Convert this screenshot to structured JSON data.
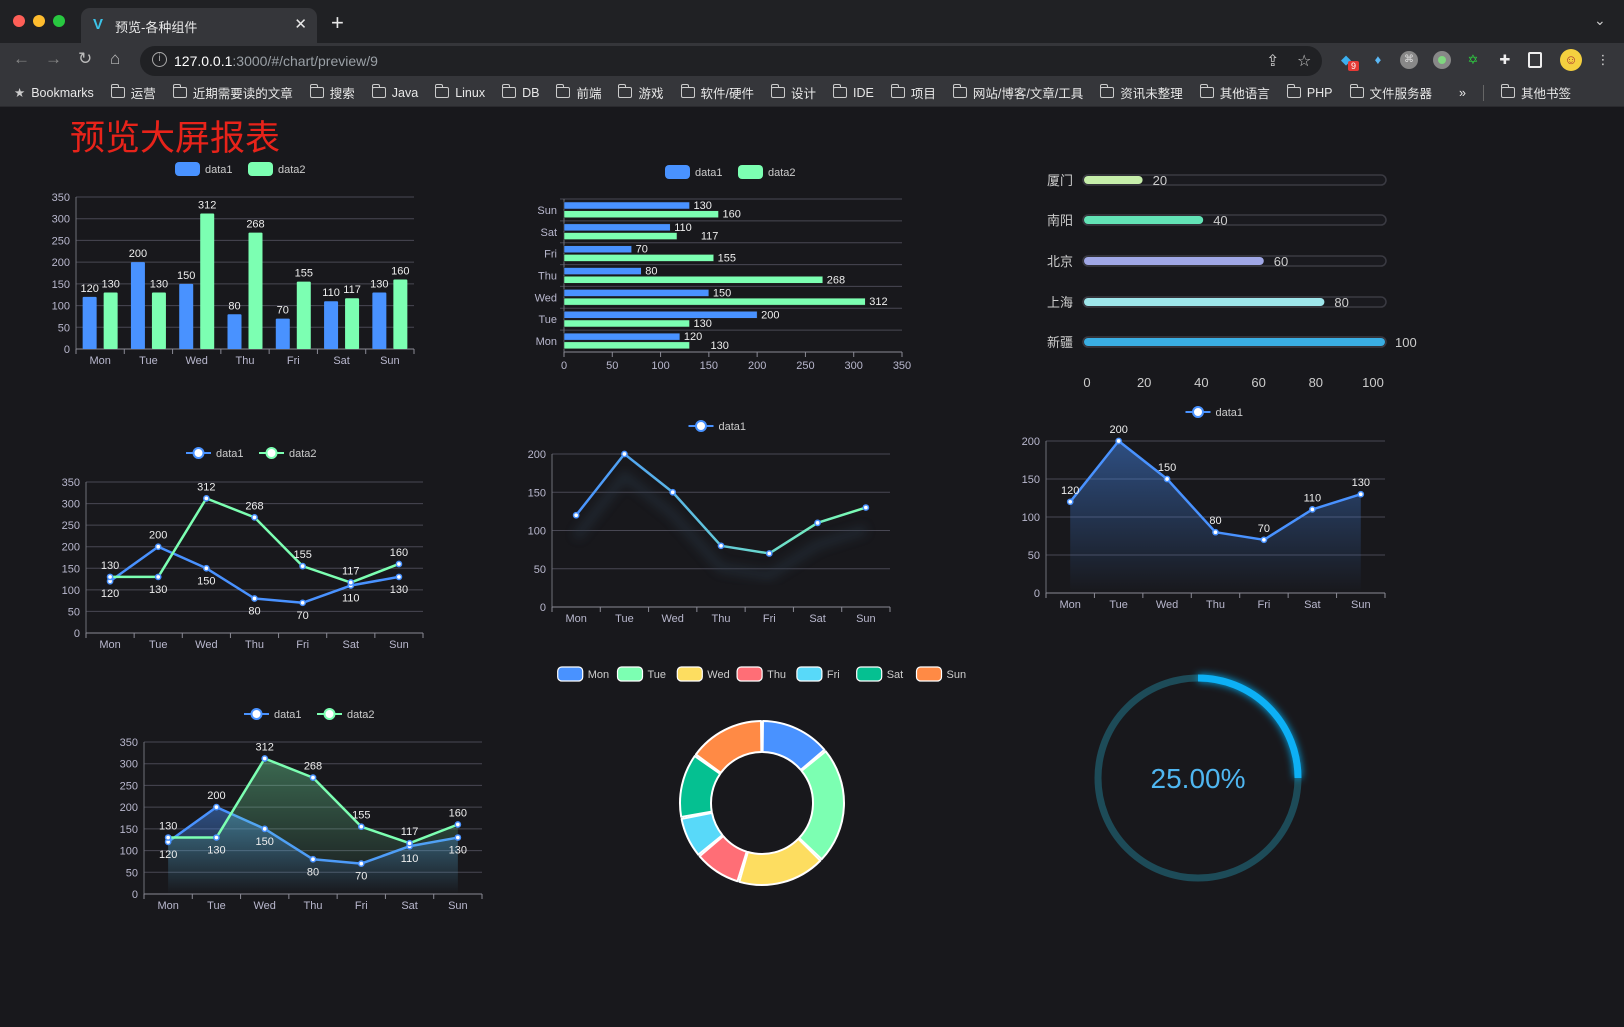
{
  "browser": {
    "tab_title": "预览-各种组件",
    "url_host": "127.0.0.1",
    "url_rest": ":3000/#/chart/preview/9",
    "bookmarks_label": "Bookmarks",
    "bookmarks": [
      "运营",
      "近期需要读的文章",
      "搜索",
      "Java",
      "Linux",
      "DB",
      "前端",
      "游戏",
      "软件/硬件",
      "设计",
      "IDE",
      "项目",
      "网站/博客/文章/工具",
      "资讯未整理",
      "其他语言",
      "PHP",
      "文件服务器"
    ],
    "overflow": "»",
    "other_bookmarks": "其他书签",
    "extension_badge": "9"
  },
  "page": {
    "title": "预览大屏报表",
    "title_color": "#e8231a"
  },
  "colors": {
    "blue": "#4992ff",
    "green": "#7cffb2",
    "axis": "#b9b8ce",
    "grid": "#484753",
    "label": "#eeeeee"
  },
  "chart_data": [
    {
      "type": "bar",
      "categories": [
        "Mon",
        "Tue",
        "Wed",
        "Thu",
        "Fri",
        "Sat",
        "Sun"
      ],
      "series": [
        {
          "name": "data1",
          "values": [
            120,
            200,
            150,
            80,
            70,
            110,
            130
          ]
        },
        {
          "name": "data2",
          "values": [
            130,
            130,
            312,
            268,
            155,
            117,
            160
          ]
        }
      ],
      "ylim": [
        0,
        350
      ],
      "yticks": [
        0,
        50,
        100,
        150,
        200,
        250,
        300,
        350
      ],
      "legend": "top",
      "grid": true,
      "data_labels": true
    },
    {
      "type": "bar",
      "orientation": "horizontal",
      "categories": [
        "Mon",
        "Tue",
        "Wed",
        "Thu",
        "Fri",
        "Sat",
        "Sun"
      ],
      "series": [
        {
          "name": "data1",
          "values": [
            120,
            200,
            150,
            80,
            70,
            110,
            130
          ]
        },
        {
          "name": "data2",
          "values": [
            130,
            130,
            312,
            268,
            155,
            117,
            160
          ]
        }
      ],
      "xlim": [
        0,
        350
      ],
      "xticks": [
        0,
        50,
        100,
        150,
        200,
        250,
        300,
        350
      ],
      "legend": "top",
      "grid": true,
      "data_labels": true
    },
    {
      "type": "bar",
      "orientation": "horizontal",
      "categories": [
        "厦门",
        "南阳",
        "北京",
        "上海",
        "新疆"
      ],
      "values": [
        20,
        40,
        60,
        80,
        100
      ],
      "xlim": [
        0,
        100
      ],
      "xticks": [
        0,
        20,
        40,
        60,
        80,
        100
      ],
      "colors": [
        "#c6eeaa",
        "#63e3b6",
        "#a0a7e6",
        "#9ee6eb",
        "#3aaee3"
      ],
      "data_labels": true
    },
    {
      "type": "line",
      "categories": [
        "Mon",
        "Tue",
        "Wed",
        "Thu",
        "Fri",
        "Sat",
        "Sun"
      ],
      "series": [
        {
          "name": "data1",
          "values": [
            120,
            200,
            150,
            80,
            70,
            110,
            130
          ]
        },
        {
          "name": "data2",
          "values": [
            130,
            130,
            312,
            268,
            155,
            117,
            160
          ]
        }
      ],
      "ylim": [
        0,
        350
      ],
      "yticks": [
        0,
        50,
        100,
        150,
        200,
        250,
        300,
        350
      ],
      "legend": "top",
      "grid": true,
      "data_labels": true
    },
    {
      "type": "line",
      "categories": [
        "Mon",
        "Tue",
        "Wed",
        "Thu",
        "Fri",
        "Sat",
        "Sun"
      ],
      "series": [
        {
          "name": "data1",
          "values": [
            120,
            200,
            150,
            80,
            70,
            110,
            130
          ]
        }
      ],
      "ylim": [
        0,
        200
      ],
      "yticks": [
        0,
        50,
        100,
        150,
        200
      ],
      "legend": "top",
      "grid": true,
      "data_labels": false,
      "gradient": [
        "#4992ff",
        "#7cffb2"
      ]
    },
    {
      "type": "area",
      "categories": [
        "Mon",
        "Tue",
        "Wed",
        "Thu",
        "Fri",
        "Sat",
        "Sun"
      ],
      "series": [
        {
          "name": "data1",
          "values": [
            120,
            200,
            150,
            80,
            70,
            110,
            130
          ]
        }
      ],
      "ylim": [
        0,
        200
      ],
      "yticks": [
        0,
        50,
        100,
        150,
        200
      ],
      "legend": "top",
      "grid": true,
      "data_labels": true
    },
    {
      "type": "area",
      "categories": [
        "Mon",
        "Tue",
        "Wed",
        "Thu",
        "Fri",
        "Sat",
        "Sun"
      ],
      "series": [
        {
          "name": "data1",
          "values": [
            120,
            200,
            150,
            80,
            70,
            110,
            130
          ]
        },
        {
          "name": "data2",
          "values": [
            130,
            130,
            312,
            268,
            155,
            117,
            160
          ]
        }
      ],
      "ylim": [
        0,
        350
      ],
      "yticks": [
        0,
        50,
        100,
        150,
        200,
        250,
        300,
        350
      ],
      "legend": "top",
      "grid": true,
      "data_labels": true
    },
    {
      "type": "pie",
      "donut": true,
      "categories": [
        "Mon",
        "Tue",
        "Wed",
        "Thu",
        "Fri",
        "Sat",
        "Sun"
      ],
      "values": [
        120,
        200,
        150,
        80,
        70,
        110,
        130
      ],
      "colors": [
        "#4992ff",
        "#7cffb2",
        "#fddd60",
        "#ff6e76",
        "#58d9f9",
        "#05c091",
        "#ff8a45"
      ],
      "legend": "top"
    },
    {
      "type": "gauge",
      "value": 25,
      "max": 100,
      "label": "25.00%",
      "color": "#0ab0f5",
      "track_color": "#1d4b58",
      "label_color": "#4fb6f0"
    }
  ]
}
